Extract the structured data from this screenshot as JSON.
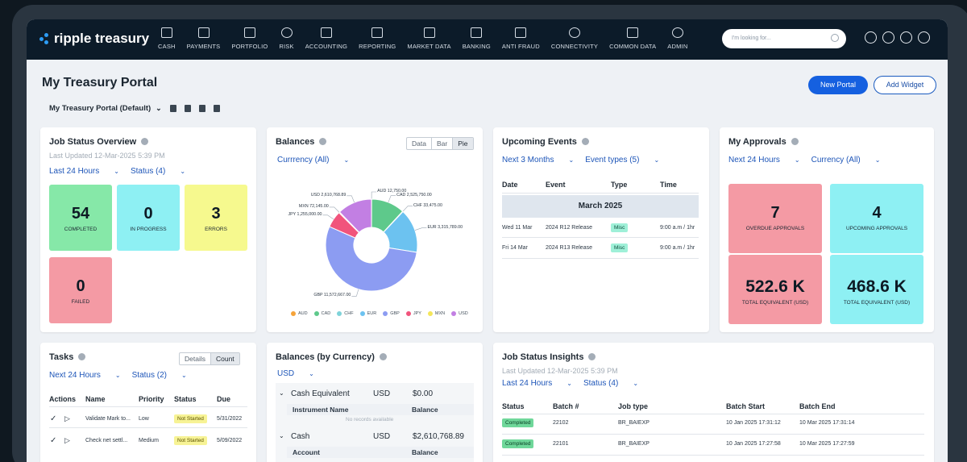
{
  "app": {
    "logo_text": "ripple treasury"
  },
  "nav": [
    {
      "label": "CASH",
      "icon": "cash-icon"
    },
    {
      "label": "PAYMENTS",
      "icon": "payments-icon"
    },
    {
      "label": "PORTFOLIO",
      "icon": "briefcase-icon"
    },
    {
      "label": "RISK",
      "icon": "gauge-icon"
    },
    {
      "label": "ACCOUNTING",
      "icon": "calculator-icon"
    },
    {
      "label": "REPORTING",
      "icon": "report-icon"
    },
    {
      "label": "MARKET DATA",
      "icon": "chart-icon"
    },
    {
      "label": "BANKING",
      "icon": "bank-icon"
    },
    {
      "label": "ANTI FRAUD",
      "icon": "shield-icon"
    },
    {
      "label": "CONNECTIVITY",
      "icon": "globe-icon"
    },
    {
      "label": "COMMON DATA",
      "icon": "database-icon"
    },
    {
      "label": "ADMIN",
      "icon": "gear-icon"
    }
  ],
  "search": {
    "placeholder": "I'm looking for..."
  },
  "page": {
    "title": "My Treasury Portal",
    "new_portal": "New Portal",
    "add_widget": "Add Widget",
    "portal_select": "My Treasury Portal (Default)"
  },
  "job_status": {
    "title": "Job Status Overview",
    "updated": "Last Updated 12-Mar-2025 5:39 PM",
    "filter_time": "Last 24 Hours",
    "filter_status": "Status (4)",
    "tiles": [
      {
        "value": "54",
        "label": "COMPLETED"
      },
      {
        "value": "0",
        "label": "IN PROGRESS"
      },
      {
        "value": "3",
        "label": "ERRORS"
      },
      {
        "value": "0",
        "label": "FAILED"
      }
    ]
  },
  "balances": {
    "title": "Balances",
    "filter": "Currrency (All)",
    "view_options": [
      "Data",
      "Bar",
      "Pie"
    ],
    "chart_data": {
      "type": "pie",
      "categories": [
        "AUD",
        "CAD",
        "CHF",
        "EUR",
        "GBP",
        "JPY",
        "MXN",
        "USD"
      ],
      "values": [
        12750.0,
        2525750.0,
        33475.0,
        3315789.0,
        11572667.0,
        1255000.0,
        72145.0,
        2610768.89
      ],
      "labels": [
        "AUD 12,750.00",
        "CAD 2,525,750.00",
        "CHF 33,475.00",
        "EUR 3,315,789.00",
        "GBP 11,572,667.00",
        "JPY 1,255,000.00",
        "MXN 72,145.00",
        "USD 2,610,768.89"
      ],
      "colors": [
        "#f5a33a",
        "#5ec98b",
        "#7fd3d9",
        "#6cc2f0",
        "#8c9cf2",
        "#f1547c",
        "#f4e65a",
        "#c27fe3"
      ],
      "legend_position": "bottom"
    }
  },
  "events": {
    "title": "Upcoming Events",
    "filter_time": "Next 3 Months",
    "filter_type": "Event types (5)",
    "columns": [
      "Date",
      "Event",
      "Type",
      "Time"
    ],
    "month": "March 2025",
    "rows": [
      {
        "date": "Wed 11 Mar",
        "event": "2024 R12 Release",
        "type": "Misc",
        "time": "9:00 a.m / 1hr"
      },
      {
        "date": "Fri 14 Mar",
        "event": "2024 R13 Release",
        "type": "Misc",
        "time": "9:00 a.m / 1hr"
      }
    ]
  },
  "approvals": {
    "title": "My Approvals",
    "filter_time": "Next 24 Hours",
    "filter_currency": "Currency (All)",
    "tiles": [
      {
        "value": "7",
        "label": "OVERDUE APPROVALS"
      },
      {
        "value": "4",
        "label": "UPCOMING APPROVALS"
      },
      {
        "value": "522.6 K",
        "label": "TOTAL EQUIVALENT (USD)"
      },
      {
        "value": "468.6 K",
        "label": "TOTAL EQUIVALENT (USD)"
      }
    ]
  },
  "tasks": {
    "title": "Tasks",
    "view_options": [
      "Details",
      "Count"
    ],
    "filter_time": "Next 24 Hours",
    "filter_status": "Status (2)",
    "columns": [
      "Actions",
      "Name",
      "Priority",
      "Status",
      "Due"
    ],
    "rows": [
      {
        "name": "Validate Mark to...",
        "priority": "Low",
        "status": "Not Started",
        "due": "5/31/2022"
      },
      {
        "name": "Check net settl...",
        "priority": "Medium",
        "status": "Not Started",
        "due": "5/09/2022"
      }
    ]
  },
  "balances_currency": {
    "title": "Balances (by Currency)",
    "currency": "USD",
    "groups": [
      {
        "name": "Cash Equivalent",
        "currency": "USD",
        "amount": "$0.00",
        "col1": "Instrument Name",
        "col2": "Balance",
        "empty": "No records available"
      },
      {
        "name": "Cash",
        "currency": "USD",
        "amount": "$2,610,768.89",
        "col1": "Account",
        "col2": "Balance"
      }
    ]
  },
  "insights": {
    "title": "Job Status Insights",
    "updated": "Last Updated 12-Mar-2025 5:39 PM",
    "filter_time": "Last 24 Hours",
    "filter_status": "Status (4)",
    "columns": [
      "Status",
      "Batch #",
      "Job type",
      "Batch Start",
      "Batch End"
    ],
    "rows": [
      {
        "status": "Completed",
        "batch": "22102",
        "job": "BR_BAIEXP",
        "start": "10 Jan 2025 17:31:12",
        "end": "10 Mar 2025 17:31:14"
      },
      {
        "status": "Completed",
        "batch": "22101",
        "job": "BR_BAIEXP",
        "start": "10 Jan 2025 17:27:58",
        "end": "10 Mar 2025 17:27:59"
      }
    ]
  }
}
